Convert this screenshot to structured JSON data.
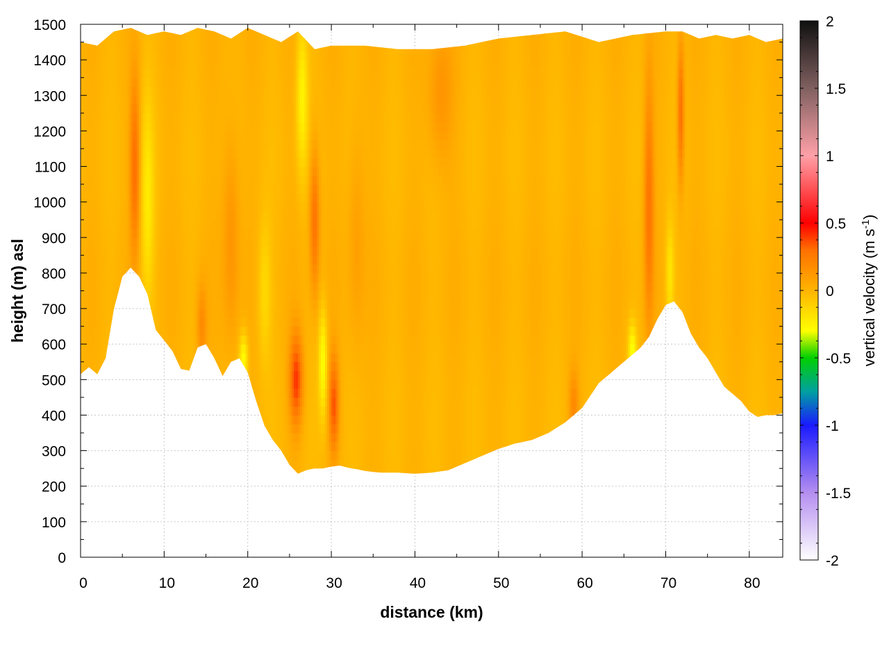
{
  "chart_data": {
    "type": "heatmap",
    "title": "",
    "xlabel": "distance (km)",
    "ylabel": "height (m) asl",
    "xlim": [
      0,
      84
    ],
    "ylim": [
      0,
      1500
    ],
    "x_ticks": [
      "0",
      "10",
      "20",
      "30",
      "40",
      "50",
      "60",
      "70",
      "80"
    ],
    "y_ticks": [
      "0",
      "100",
      "200",
      "300",
      "400",
      "500",
      "600",
      "700",
      "800",
      "900",
      "1000",
      "1100",
      "1200",
      "1300",
      "1400",
      "1500"
    ],
    "grid": true,
    "colorbar": {
      "label": "vertical velocity (m s",
      "label_superscript": "-1",
      "label_suffix": ")",
      "range": [
        -2,
        2
      ],
      "ticks": [
        "2",
        "1.5",
        "1",
        "0.5",
        "0",
        "-0.5",
        "-1",
        "-1.5",
        "-2"
      ],
      "stops": [
        {
          "value": -2.0,
          "color": "#ffffff"
        },
        {
          "value": -1.5,
          "color": "#b48ef0"
        },
        {
          "value": -1.0,
          "color": "#1a1aff"
        },
        {
          "value": -0.75,
          "color": "#00a0a0"
        },
        {
          "value": -0.5,
          "color": "#00d000"
        },
        {
          "value": -0.3,
          "color": "#ffff00"
        },
        {
          "value": 0.0,
          "color": "#ffb400"
        },
        {
          "value": 0.3,
          "color": "#ff7000"
        },
        {
          "value": 0.5,
          "color": "#ff0000"
        },
        {
          "value": 1.0,
          "color": "#ffa0a8"
        },
        {
          "value": 1.5,
          "color": "#806060"
        },
        {
          "value": 2.0,
          "color": "#101010"
        }
      ]
    },
    "terrain_profile": {
      "x": [
        0,
        1,
        2,
        3,
        4,
        5,
        6,
        7,
        8,
        9,
        10,
        11,
        12,
        13,
        14,
        15,
        16,
        17,
        18,
        19,
        20,
        21,
        22,
        23,
        24,
        25,
        26,
        27,
        28,
        29,
        30,
        31,
        32,
        33,
        34,
        35,
        36,
        38,
        40,
        42,
        44,
        46,
        48,
        50,
        52,
        54,
        56,
        58,
        59,
        60,
        61,
        62,
        63,
        64,
        65,
        66,
        67,
        68,
        69,
        70,
        71,
        72,
        73,
        74,
        75,
        76,
        77,
        78,
        79,
        80,
        81,
        82,
        83,
        84
      ],
      "y": [
        515,
        535,
        515,
        560,
        700,
        790,
        815,
        790,
        740,
        640,
        610,
        580,
        530,
        525,
        590,
        600,
        560,
        510,
        550,
        560,
        520,
        440,
        370,
        330,
        300,
        260,
        235,
        245,
        250,
        250,
        255,
        258,
        252,
        248,
        243,
        240,
        238,
        238,
        235,
        238,
        245,
        265,
        285,
        305,
        320,
        330,
        350,
        380,
        400,
        420,
        455,
        490,
        510,
        530,
        550,
        570,
        590,
        620,
        670,
        710,
        720,
        690,
        630,
        590,
        560,
        520,
        480,
        460,
        440,
        410,
        395,
        400,
        400,
        405
      ]
    },
    "top_profile": {
      "x": [
        0,
        2,
        4,
        6,
        8,
        10,
        12,
        14,
        16,
        18,
        20,
        22,
        24,
        26,
        28,
        30,
        34,
        38,
        42,
        46,
        50,
        54,
        58,
        62,
        66,
        70,
        72,
        74,
        76,
        78,
        80,
        82,
        84
      ],
      "y": [
        1450,
        1440,
        1480,
        1490,
        1470,
        1480,
        1470,
        1490,
        1480,
        1460,
        1490,
        1470,
        1450,
        1480,
        1430,
        1440,
        1440,
        1430,
        1430,
        1440,
        1460,
        1470,
        1480,
        1450,
        1470,
        1480,
        1480,
        1460,
        1470,
        1460,
        1470,
        1450,
        1460
      ]
    },
    "w_features": [
      {
        "x": 6.5,
        "y": 1100,
        "w": 0.3,
        "sx": 0.6,
        "sy": 250
      },
      {
        "x": 8.0,
        "y": 1000,
        "w": -0.2,
        "sx": 0.8,
        "sy": 300
      },
      {
        "x": 14.5,
        "y": 650,
        "w": 0.18,
        "sx": 0.6,
        "sy": 120
      },
      {
        "x": 18.0,
        "y": 900,
        "w": 0.15,
        "sx": 1.0,
        "sy": 300
      },
      {
        "x": 19.5,
        "y": 560,
        "w": -0.3,
        "sx": 0.5,
        "sy": 70
      },
      {
        "x": 22.0,
        "y": 750,
        "w": -0.15,
        "sx": 0.8,
        "sy": 200
      },
      {
        "x": 25.8,
        "y": 500,
        "w": 0.4,
        "sx": 0.8,
        "sy": 130
      },
      {
        "x": 26.5,
        "y": 1300,
        "w": -0.25,
        "sx": 0.7,
        "sy": 220
      },
      {
        "x": 28.0,
        "y": 950,
        "w": 0.3,
        "sx": 0.6,
        "sy": 200
      },
      {
        "x": 29.0,
        "y": 550,
        "w": -0.3,
        "sx": 0.5,
        "sy": 150
      },
      {
        "x": 30.3,
        "y": 430,
        "w": 0.35,
        "sx": 0.6,
        "sy": 140
      },
      {
        "x": 33.0,
        "y": 900,
        "w": 0.1,
        "sx": 1.0,
        "sy": 300
      },
      {
        "x": 43.0,
        "y": 1300,
        "w": 0.15,
        "sx": 1.5,
        "sy": 200
      },
      {
        "x": 59.0,
        "y": 430,
        "w": 0.18,
        "sx": 0.6,
        "sy": 100
      },
      {
        "x": 66.0,
        "y": 580,
        "w": -0.3,
        "sx": 0.5,
        "sy": 80
      },
      {
        "x": 68.0,
        "y": 1000,
        "w": 0.28,
        "sx": 0.6,
        "sy": 350
      },
      {
        "x": 71.8,
        "y": 1250,
        "w": 0.32,
        "sx": 0.4,
        "sy": 200
      },
      {
        "x": 70.5,
        "y": 800,
        "w": -0.2,
        "sx": 0.5,
        "sy": 150
      }
    ]
  }
}
